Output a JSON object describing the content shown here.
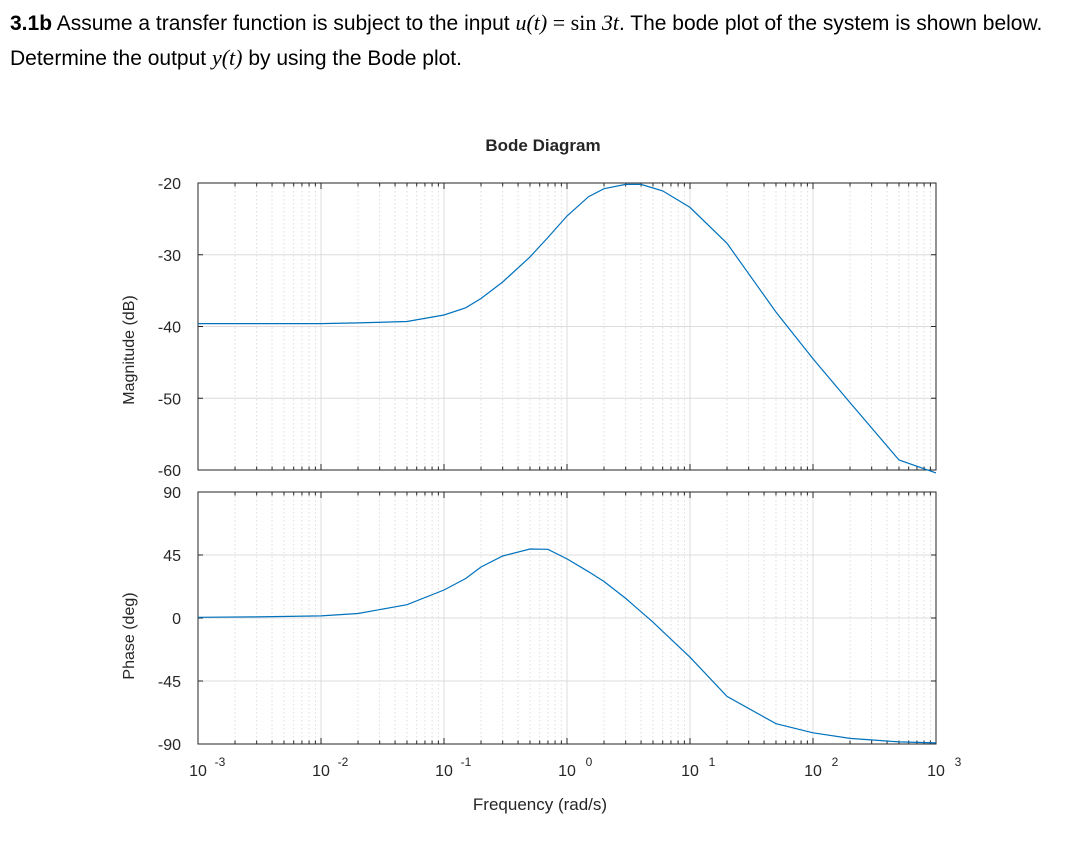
{
  "question": {
    "number": "3.1b",
    "text_before": " Assume a transfer function is subject to the input ",
    "input_lhs": "u(t)",
    "equals": " = ",
    "input_rhs_fn": "sin",
    "input_rhs_arg": " 3t",
    "text_mid": ". The bode plot of the system is shown below. Determine the output ",
    "output_expr": "y(t)",
    "text_after": " by using the Bode plot."
  },
  "chart_data": {
    "type": "line",
    "title": "Bode Diagram",
    "xlabel": "Frequency  (rad/s)",
    "xscale": "log",
    "xlim": [
      0.001,
      1000
    ],
    "x_ticks": [
      {
        "base": "10",
        "exp": "-3"
      },
      {
        "base": "10",
        "exp": "-2"
      },
      {
        "base": "10",
        "exp": "-1"
      },
      {
        "base": "10",
        "exp": "0"
      },
      {
        "base": "10",
        "exp": "1"
      },
      {
        "base": "10",
        "exp": "2"
      },
      {
        "base": "10",
        "exp": "3"
      }
    ],
    "grid": true,
    "line_color": "#0072BD",
    "panels": [
      {
        "name": "magnitude",
        "ylabel": "Magnitude (dB)",
        "ylim": [
          -60,
          -20
        ],
        "yticks": [
          "-20",
          "-30",
          "-40",
          "-50",
          "-60"
        ],
        "x": [
          0.001,
          0.003,
          0.01,
          0.02,
          0.05,
          0.1,
          0.15,
          0.2,
          0.3,
          0.5,
          0.7,
          1,
          1.5,
          2,
          3,
          4,
          6,
          10,
          20,
          50,
          100,
          200,
          500,
          1000
        ],
        "y": [
          -39.6,
          -39.6,
          -39.6,
          -39.5,
          -39.3,
          -38.4,
          -37.4,
          -36.1,
          -33.8,
          -30.3,
          -27.6,
          -24.6,
          -21.9,
          -20.8,
          -20.2,
          -20.2,
          -21.1,
          -23.4,
          -28.4,
          -38.0,
          -44.5,
          -50.6,
          -58.6,
          -60.4
        ]
      },
      {
        "name": "phase",
        "ylabel": "Phase (deg)",
        "ylim": [
          -90,
          90
        ],
        "yticks": [
          "90",
          "45",
          "0",
          "-45",
          "-90"
        ],
        "x": [
          0.001,
          0.003,
          0.01,
          0.02,
          0.05,
          0.1,
          0.15,
          0.2,
          0.3,
          0.5,
          0.7,
          1,
          1.5,
          2,
          3,
          5,
          10,
          20,
          50,
          100,
          200,
          500,
          1000
        ],
        "y": [
          0.5,
          0.8,
          1.5,
          3.2,
          9.5,
          20.0,
          28.2,
          36.4,
          44.3,
          49.3,
          49.1,
          42.2,
          33.0,
          26.1,
          14.0,
          -3.0,
          -28.0,
          -56.0,
          -75.5,
          -82.0,
          -86.0,
          -88.5,
          -89.2
        ]
      }
    ]
  }
}
